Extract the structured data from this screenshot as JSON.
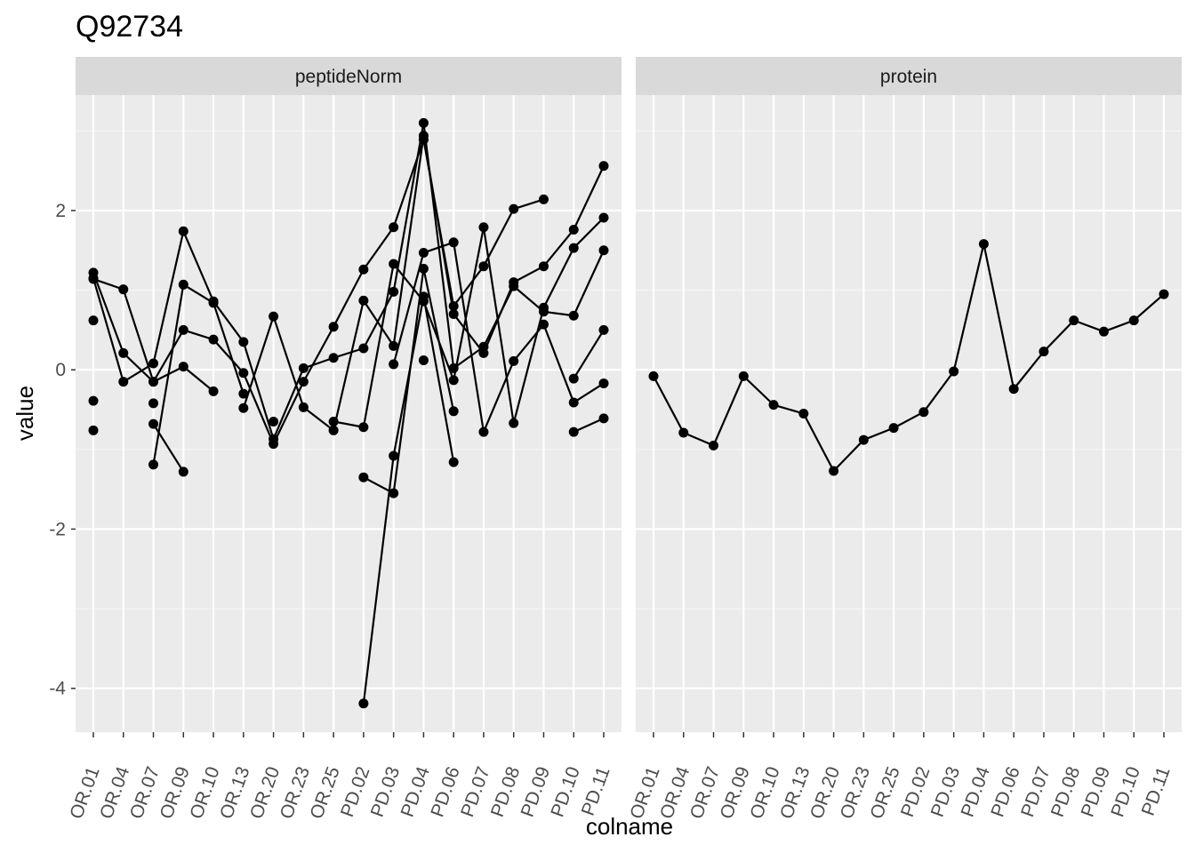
{
  "chart_data": {
    "type": "line",
    "title": "Q92734",
    "xlabel": "colname",
    "ylabel": "value",
    "ylim": [
      -4.55,
      3.45
    ],
    "y_ticks": [
      2,
      0,
      -2,
      -4
    ],
    "y_tick_labels": [
      "2",
      "0",
      "-2",
      "-4"
    ],
    "grid": true,
    "categories": [
      "OR.01",
      "OR.04",
      "OR.07",
      "OR.09",
      "OR.10",
      "OR.13",
      "OR.20",
      "OR.23",
      "OR.25",
      "PD.02",
      "PD.03",
      "PD.04",
      "PD.06",
      "PD.07",
      "PD.08",
      "PD.09",
      "PD.10",
      "PD.11"
    ],
    "panels": [
      {
        "name": "peptideNorm",
        "series": [
          {
            "values": [
              1.22,
              0.21,
              -0.15,
              0.04,
              -0.27,
              null,
              -0.65,
              null,
              null,
              -1.35,
              -1.55,
              1.27,
              -0.52,
              null,
              null,
              null,
              null,
              null
            ]
          },
          {
            "values": [
              1.15,
              -0.15,
              0.08,
              1.74,
              0.86,
              0.35,
              -0.87,
              0.02,
              0.15,
              0.27,
              0.98,
              3.1,
              0.02,
              0.29,
              1.05,
              0.73,
              0.68,
              1.5
            ]
          },
          {
            "values": [
              1.14,
              1.01,
              -0.15,
              0.5,
              0.38,
              -0.04,
              -0.93,
              -0.15,
              0.54,
              1.26,
              1.79,
              2.89,
              0.8,
              1.3,
              2.02,
              2.14,
              null,
              null
            ]
          },
          {
            "values": [
              0.62,
              null,
              -1.19,
              1.07,
              0.84,
              -0.3,
              null,
              null,
              -0.65,
              -0.72,
              1.33,
              0.86,
              -0.13,
              1.79,
              -0.67,
              0.78,
              1.53,
              1.91
            ]
          },
          {
            "values": [
              -0.39,
              null,
              -0.68,
              -1.28,
              null,
              -0.48,
              0.67,
              -0.47,
              -0.76,
              0.87,
              0.3,
              2.94,
              0.7,
              0.21,
              1.1,
              1.3,
              1.76,
              2.56
            ]
          },
          {
            "values": [
              -0.76,
              null,
              -0.42,
              null,
              null,
              null,
              null,
              null,
              null,
              null,
              0.07,
              1.47,
              1.6,
              -0.78,
              0.11,
              0.57,
              -0.41,
              -0.17
            ]
          },
          {
            "values": [
              null,
              null,
              null,
              null,
              null,
              null,
              null,
              null,
              null,
              -4.19,
              -1.08,
              0.92,
              -1.16,
              null,
              null,
              null,
              -0.78,
              -0.61
            ]
          },
          {
            "values": [
              null,
              null,
              null,
              null,
              null,
              null,
              null,
              null,
              null,
              null,
              null,
              0.12,
              null,
              null,
              null,
              null,
              -0.11,
              0.5
            ]
          }
        ]
      },
      {
        "name": "protein",
        "series": [
          {
            "values": [
              -0.08,
              -0.79,
              -0.95,
              -0.08,
              -0.44,
              -0.55,
              -1.27,
              -0.88,
              -0.73,
              -0.53,
              -0.02,
              1.58,
              -0.24,
              0.23,
              0.62,
              0.48,
              0.62,
              0.95
            ]
          }
        ]
      }
    ]
  }
}
